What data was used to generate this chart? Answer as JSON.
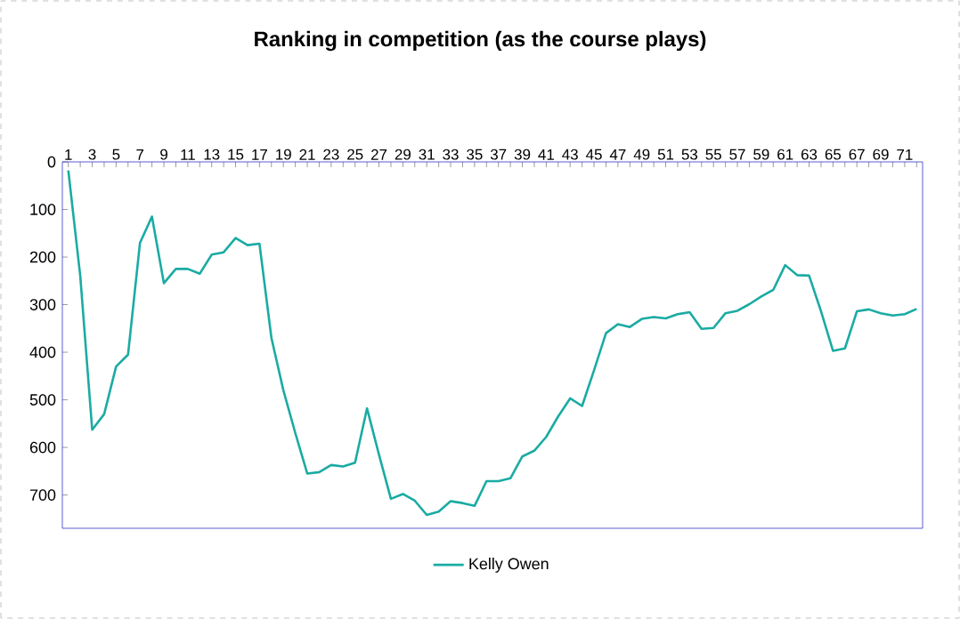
{
  "chart_data": {
    "type": "line",
    "title": "Ranking in competition (as the course plays)",
    "categories": [
      "1",
      null,
      "3",
      null,
      "5",
      null,
      "7",
      null,
      "9",
      null,
      "11",
      null,
      "13",
      null,
      "15",
      null,
      "17",
      null,
      "19",
      null,
      "21",
      null,
      "23",
      null,
      "25",
      null,
      "27",
      null,
      "29",
      null,
      "31",
      null,
      "33",
      null,
      "35",
      null,
      "37",
      null,
      "39",
      null,
      "41",
      null,
      "43",
      null,
      "45",
      null,
      "47",
      null,
      "49",
      null,
      "51",
      null,
      "53",
      null,
      "55",
      null,
      "57",
      null,
      "59",
      null,
      "61",
      null,
      "63",
      null,
      "65",
      null,
      "67",
      null,
      "69",
      null,
      "71",
      null
    ],
    "series": [
      {
        "name": "Kelly Owen",
        "color": "#1aaba3",
        "values": [
          18,
          240,
          563,
          530,
          430,
          405,
          170,
          115,
          255,
          225,
          225,
          235,
          195,
          190,
          160,
          175,
          172,
          370,
          480,
          570,
          655,
          652,
          637,
          640,
          632,
          518,
          615,
          708,
          698,
          712,
          742,
          735,
          713,
          717,
          723,
          671,
          671,
          665,
          619,
          607,
          578,
          535,
          497,
          513,
          438,
          360,
          341,
          347,
          330,
          326,
          329,
          320,
          316,
          351,
          349,
          318,
          313,
          299,
          283,
          269,
          217,
          238,
          239,
          314,
          397,
          392,
          314,
          310,
          318,
          323,
          320,
          309
        ]
      }
    ],
    "ylim": [
      770,
      0
    ],
    "yticks": [
      0,
      100,
      200,
      300,
      400,
      500,
      600,
      700
    ],
    "grid": false,
    "legend": "bottom",
    "marker": "none",
    "line_style": "solid"
  }
}
